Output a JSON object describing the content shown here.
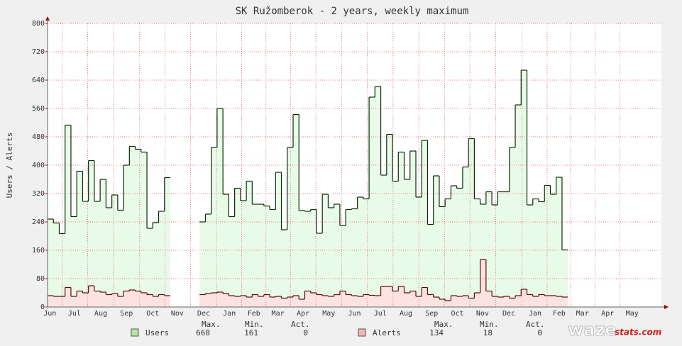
{
  "chart_data": {
    "type": "step-area",
    "title": "SK Ružomberok - 2 years, weekly maximum",
    "y_label": "Users / Alerts",
    "xlim": [
      0,
      105
    ],
    "x": [
      0,
      1,
      2,
      3,
      4,
      5,
      6,
      7,
      8,
      9,
      10,
      11,
      12,
      13,
      14,
      15,
      16,
      17,
      18,
      19,
      20,
      21,
      22,
      23,
      24,
      25,
      26,
      27,
      28,
      29,
      30,
      31,
      32,
      33,
      34,
      35,
      36,
      37,
      38,
      39,
      40,
      41,
      42,
      43,
      44,
      45,
      46,
      47,
      48,
      49,
      50,
      51,
      52,
      53,
      54,
      55,
      56,
      57,
      58,
      59,
      60,
      61,
      62,
      63,
      64,
      65,
      66,
      67,
      68,
      69,
      70,
      71,
      72,
      73,
      74,
      75,
      76,
      77,
      78,
      79,
      80,
      81,
      82,
      83,
      84,
      85,
      86,
      87,
      88
    ],
    "xticks": [
      {
        "value": 0.4,
        "label": "Jun"
      },
      {
        "value": 4.6,
        "label": "Jul"
      },
      {
        "value": 9.1,
        "label": "Aug"
      },
      {
        "value": 13.5,
        "label": "Sep"
      },
      {
        "value": 18,
        "label": "Oct"
      },
      {
        "value": 22.2,
        "label": "Nov"
      },
      {
        "value": 26.7,
        "label": "Dec"
      },
      {
        "value": 31.1,
        "label": "Jan"
      },
      {
        "value": 35.3,
        "label": "Feb"
      },
      {
        "value": 39.4,
        "label": "Mar"
      },
      {
        "value": 43.7,
        "label": "Apr"
      },
      {
        "value": 48.1,
        "label": "May"
      },
      {
        "value": 52.5,
        "label": "Jun"
      },
      {
        "value": 56.9,
        "label": "Jul"
      },
      {
        "value": 61.3,
        "label": "Aug"
      },
      {
        "value": 65.7,
        "label": "Sep"
      },
      {
        "value": 70.1,
        "label": "Oct"
      },
      {
        "value": 74.4,
        "label": "Nov"
      },
      {
        "value": 78.9,
        "label": "Dec"
      },
      {
        "value": 83.4,
        "label": "Jan"
      },
      {
        "value": 87.5,
        "label": "Feb"
      },
      {
        "value": 91.5,
        "label": "Mar"
      },
      {
        "value": 95.8,
        "label": "Apr"
      },
      {
        "value": 100,
        "label": "May"
      }
    ],
    "ylim": [
      0,
      800
    ],
    "yticks": [
      0,
      80,
      160,
      240,
      320,
      400,
      480,
      560,
      640,
      720,
      800
    ],
    "grid": true,
    "stat_headers": [
      "Max.",
      "Min.",
      "Act."
    ],
    "series": [
      {
        "name": "Users",
        "color": "#e8fae8",
        "line_color": "#0a2a0a",
        "swatch": "#b5e6a2",
        "max": 668,
        "min": 161,
        "act": 0,
        "values": [
          248,
          237,
          207,
          513,
          255,
          383,
          298,
          413,
          298,
          360,
          280,
          316,
          273,
          400,
          453,
          445,
          437,
          222,
          238,
          270,
          365,
          null,
          null,
          null,
          null,
          null,
          240,
          262,
          450,
          560,
          318,
          255,
          335,
          300,
          355,
          290,
          290,
          285,
          275,
          380,
          218,
          450,
          543,
          272,
          270,
          275,
          208,
          318,
          280,
          290,
          230,
          275,
          277,
          310,
          305,
          592,
          622,
          372,
          487,
          355,
          437,
          360,
          440,
          310,
          470,
          233,
          370,
          283,
          305,
          342,
          335,
          395,
          475,
          305,
          290,
          325,
          288,
          325,
          325,
          450,
          570,
          668,
          288,
          305,
          297,
          343,
          318,
          366,
          161
        ]
      },
      {
        "name": "Alerts",
        "color": "#fde2e2",
        "line_color": "#5a0a0a",
        "swatch": "#f5b5b5",
        "max": 134,
        "min": 18,
        "act": 0,
        "values": [
          32,
          30,
          30,
          55,
          30,
          45,
          40,
          60,
          45,
          42,
          35,
          38,
          30,
          45,
          48,
          45,
          40,
          35,
          30,
          35,
          32,
          null,
          null,
          null,
          null,
          null,
          35,
          38,
          40,
          42,
          38,
          32,
          30,
          32,
          28,
          35,
          30,
          35,
          28,
          30,
          25,
          28,
          32,
          22,
          45,
          40,
          35,
          32,
          30,
          35,
          45,
          35,
          32,
          30,
          35,
          33,
          32,
          58,
          58,
          45,
          58,
          40,
          45,
          30,
          55,
          35,
          28,
          22,
          18,
          32,
          30,
          32,
          25,
          40,
          134,
          45,
          30,
          28,
          30,
          25,
          32,
          50,
          35,
          30,
          35,
          32,
          32,
          30,
          28
        ]
      }
    ],
    "logo": {
      "main": "waze",
      "sub": "stats.com"
    }
  }
}
